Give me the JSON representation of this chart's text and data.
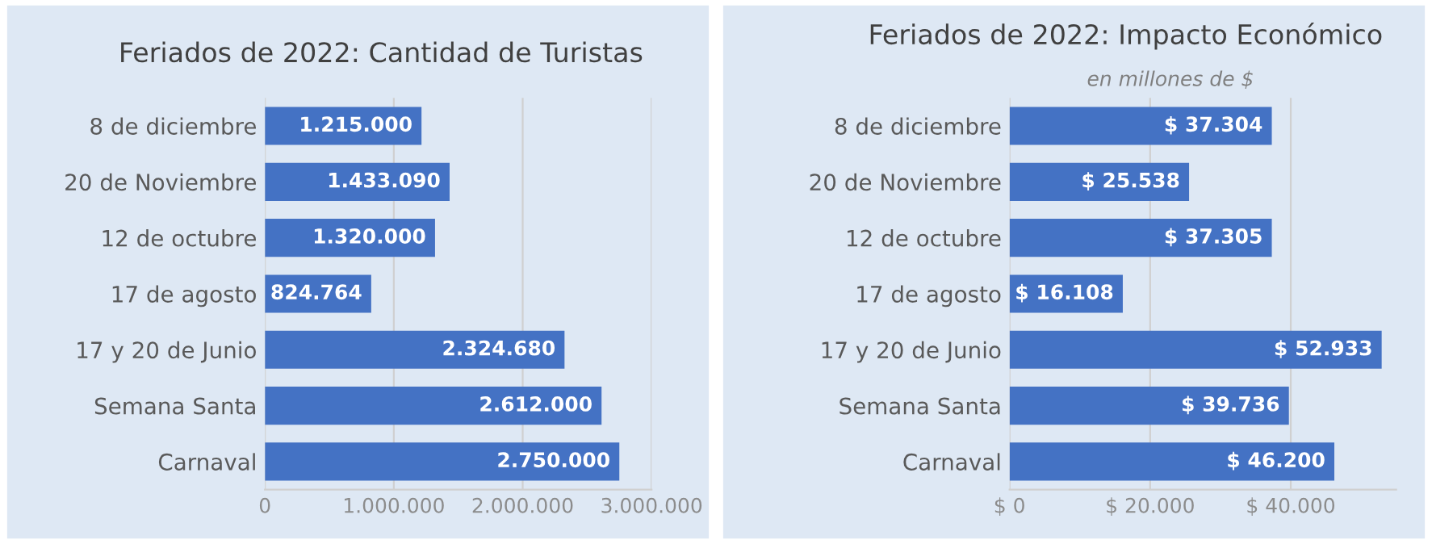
{
  "chart_data": [
    {
      "type": "bar",
      "orientation": "horizontal",
      "title": "Feriados de 2022: Cantidad de Turistas",
      "categories": [
        "8 de diciembre",
        "20 de Noviembre",
        "12 de octubre",
        "17 de agosto",
        "17 y 20 de Junio",
        "Semana Santa",
        "Carnaval"
      ],
      "values": [
        1215000,
        1433090,
        1320000,
        824764,
        2324680,
        2612000,
        2750000
      ],
      "value_labels": [
        "1.215.000",
        "1.433.090",
        "1.320.000",
        "824.764",
        "2.324.680",
        "2.612.000",
        "2.750.000"
      ],
      "color": "#4472c4",
      "xlim": [
        0,
        3000000
      ],
      "xticks": [
        {
          "value": 0,
          "label": "0"
        },
        {
          "value": 1000000,
          "label": "1.000.000"
        },
        {
          "value": 2000000,
          "label": "2.000.000"
        },
        {
          "value": 3000000,
          "label": "3.000.000"
        }
      ],
      "grid": "x"
    },
    {
      "type": "bar",
      "orientation": "horizontal",
      "title": "Feriados de 2022: Impacto Económico",
      "subtitle": "en millones de $",
      "categories": [
        "8 de diciembre",
        "20 de Noviembre",
        "12 de octubre",
        "17 de agosto",
        "17 y 20 de Junio",
        "Semana Santa",
        "Carnaval"
      ],
      "values": [
        37304,
        25538,
        37305,
        16108,
        52933,
        39736,
        46200
      ],
      "value_labels": [
        "$ 37.304",
        "$ 25.538",
        "$ 37.305",
        "$ 16.108",
        "$ 52.933",
        "$ 39.736",
        "$ 46.200"
      ],
      "color": "#4472c4",
      "xlim": [
        0,
        55000
      ],
      "xticks": [
        {
          "value": 0,
          "label": "$ 0"
        },
        {
          "value": 20000,
          "label": "$ 20.000"
        },
        {
          "value": 40000,
          "label": "$ 40.000"
        }
      ],
      "grid": "x"
    }
  ]
}
